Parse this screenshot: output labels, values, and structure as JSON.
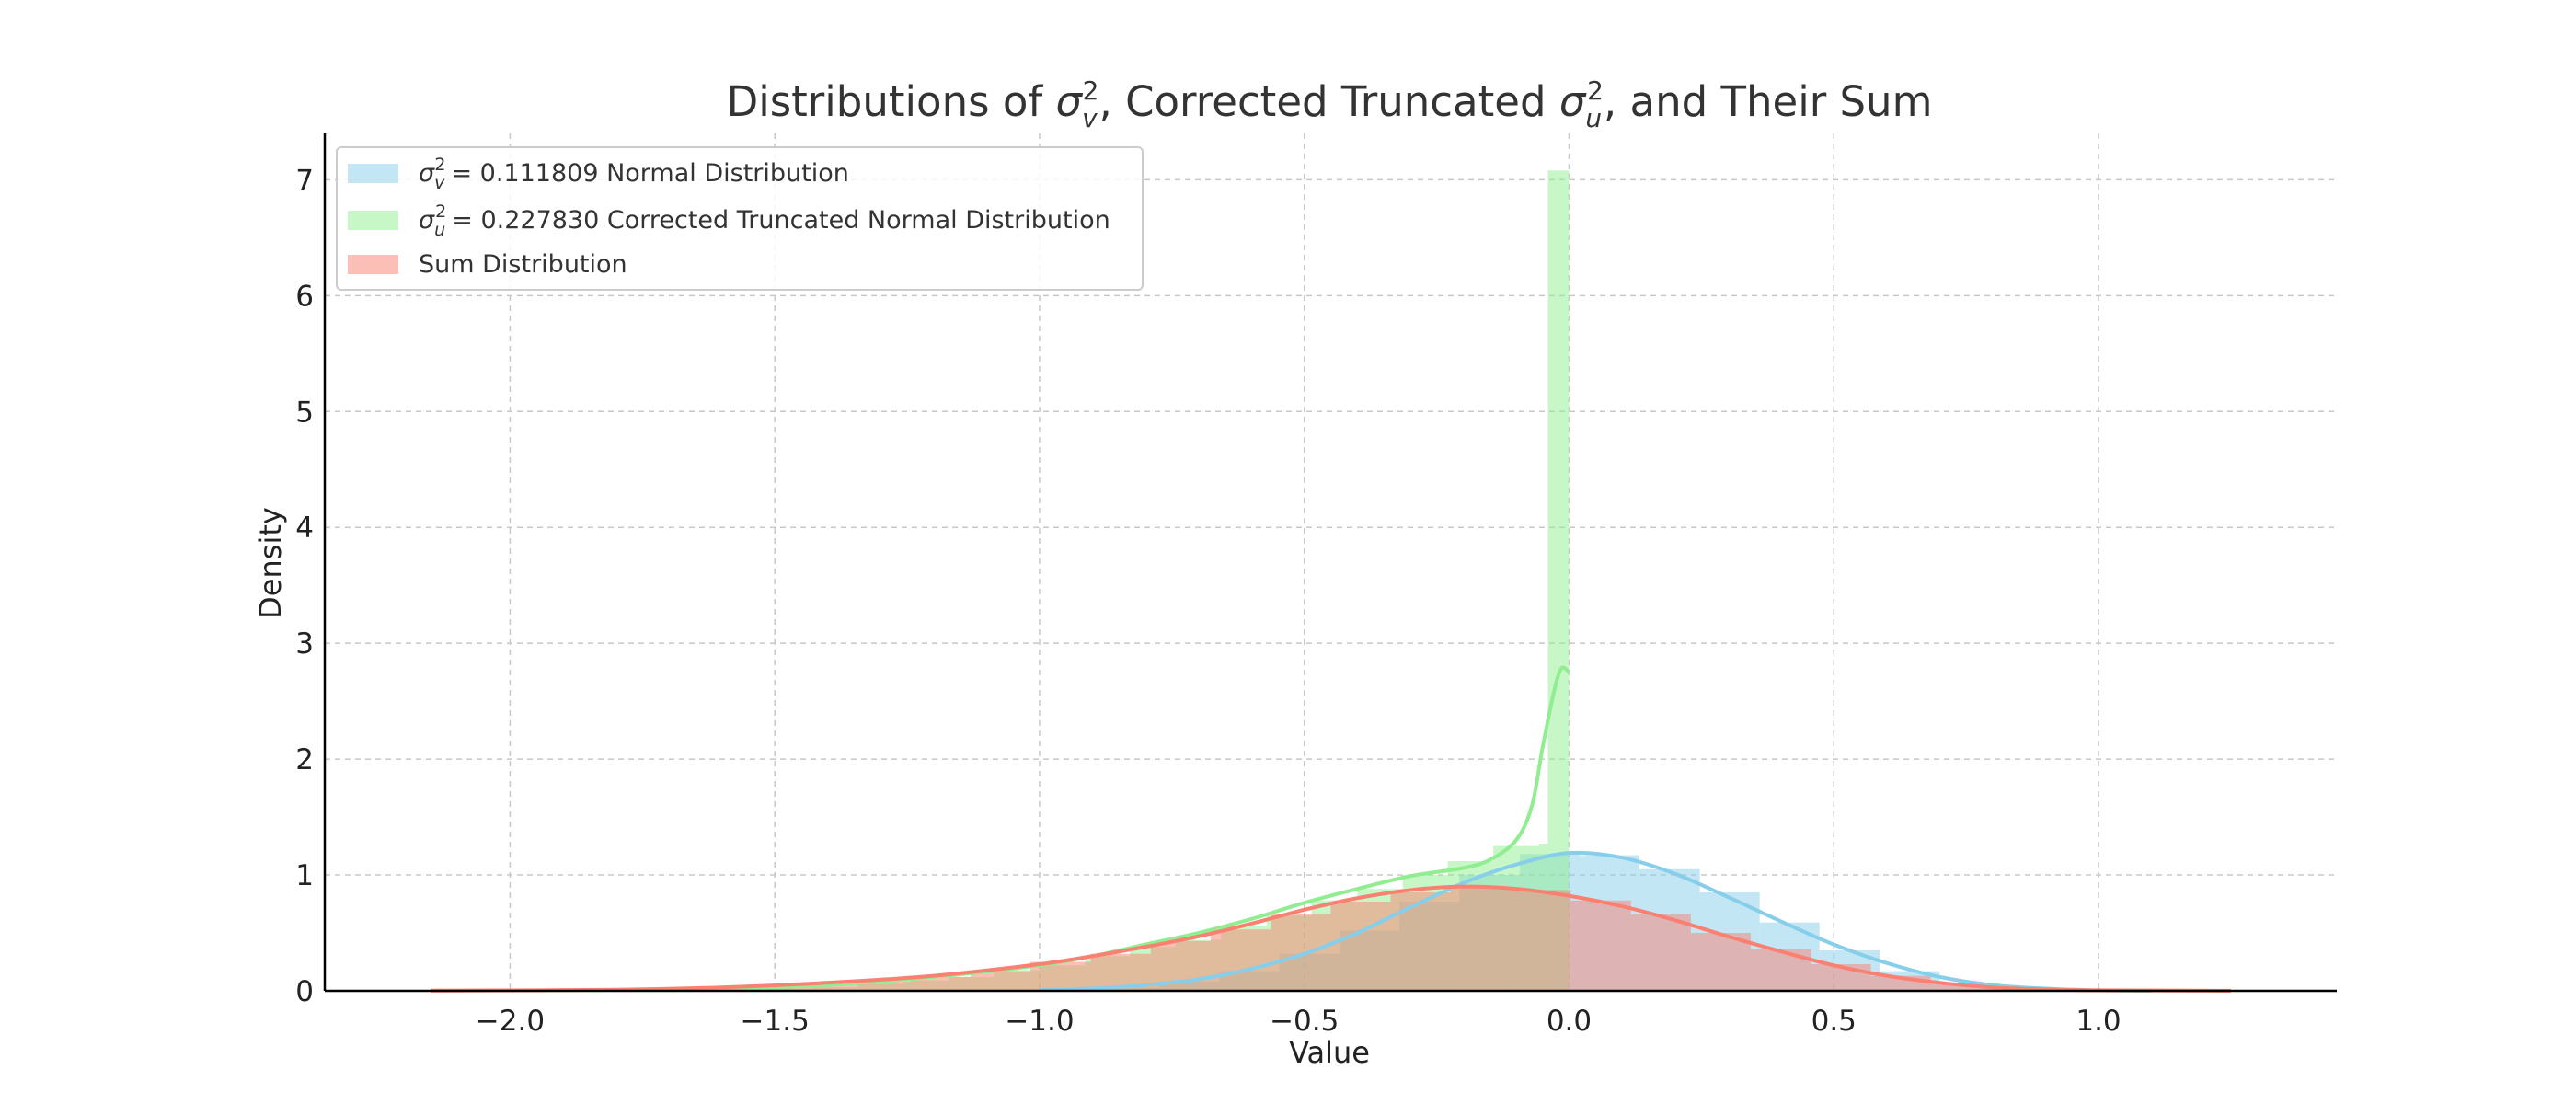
{
  "chart_data": {
    "type": "histogram",
    "title": "Distributions of σv², Corrected Truncated σu², and Their Sum",
    "xlabel": "Value",
    "ylabel": "Density",
    "xlim": [
      -2.35,
      1.45
    ],
    "ylim": [
      0,
      7.4
    ],
    "xticks": [
      "−2.0",
      "−1.5",
      "−1.0",
      "−0.5",
      "0.0",
      "0.5",
      "1.0"
    ],
    "xtick_values": [
      -2.0,
      -1.5,
      -1.0,
      -0.5,
      0.0,
      0.5,
      1.0
    ],
    "yticks": [
      "0",
      "1",
      "2",
      "3",
      "4",
      "5",
      "6",
      "7"
    ],
    "ytick_values": [
      0,
      1,
      2,
      3,
      4,
      5,
      6,
      7
    ],
    "grid": true,
    "legend_position": "top-left",
    "series": [
      {
        "key": "sv",
        "name": "= 0.111809 Normal Distribution",
        "symbol": "σ",
        "superscript": "2",
        "subscript": "v",
        "fill_color": "#87CEEB",
        "line_color": "#87CEEB",
        "bins": [
          [
            -1.0,
            -0.887,
            0.01
          ],
          [
            -0.887,
            -0.773,
            0.03
          ],
          [
            -0.773,
            -0.66,
            0.08
          ],
          [
            -0.66,
            -0.547,
            0.17
          ],
          [
            -0.547,
            -0.433,
            0.32
          ],
          [
            -0.433,
            -0.32,
            0.52
          ],
          [
            -0.32,
            -0.207,
            0.77
          ],
          [
            -0.207,
            -0.093,
            1.0
          ],
          [
            -0.093,
            0.02,
            1.18
          ],
          [
            0.02,
            0.133,
            1.17
          ],
          [
            0.133,
            0.247,
            1.05
          ],
          [
            0.247,
            0.36,
            0.85
          ],
          [
            0.36,
            0.473,
            0.59
          ],
          [
            0.473,
            0.587,
            0.35
          ],
          [
            0.587,
            0.7,
            0.17
          ],
          [
            0.7,
            0.813,
            0.07
          ],
          [
            0.813,
            0.927,
            0.02
          ]
        ],
        "kde": [
          [
            -1.0,
            0.01
          ],
          [
            -0.9,
            0.02
          ],
          [
            -0.8,
            0.05
          ],
          [
            -0.7,
            0.1
          ],
          [
            -0.6,
            0.19
          ],
          [
            -0.5,
            0.32
          ],
          [
            -0.4,
            0.5
          ],
          [
            -0.3,
            0.72
          ],
          [
            -0.2,
            0.93
          ],
          [
            -0.1,
            1.09
          ],
          [
            0.0,
            1.19
          ],
          [
            0.1,
            1.15
          ],
          [
            0.2,
            1.01
          ],
          [
            0.3,
            0.81
          ],
          [
            0.4,
            0.6
          ],
          [
            0.5,
            0.4
          ],
          [
            0.6,
            0.24
          ],
          [
            0.7,
            0.12
          ],
          [
            0.8,
            0.05
          ],
          [
            0.9,
            0.02
          ],
          [
            1.0,
            0.005
          ],
          [
            1.1,
            0.001
          ]
        ]
      },
      {
        "key": "su",
        "name": "= 0.227830 Corrected Truncated Normal Distribution",
        "symbol": "σ",
        "superscript": "2",
        "subscript": "u",
        "fill_color": "#90EE90",
        "line_color": "#90EE90",
        "bins": [
          [
            -1.6,
            -1.514,
            0.01
          ],
          [
            -1.514,
            -1.429,
            0.02
          ],
          [
            -1.429,
            -1.343,
            0.03
          ],
          [
            -1.343,
            -1.257,
            0.06
          ],
          [
            -1.257,
            -1.171,
            0.09
          ],
          [
            -1.171,
            -1.086,
            0.12
          ],
          [
            -1.086,
            -1.0,
            0.18
          ],
          [
            -1.0,
            -0.914,
            0.22
          ],
          [
            -0.914,
            -0.829,
            0.3
          ],
          [
            -0.829,
            -0.743,
            0.38
          ],
          [
            -0.743,
            -0.657,
            0.44
          ],
          [
            -0.657,
            -0.571,
            0.56
          ],
          [
            -0.571,
            -0.486,
            0.65
          ],
          [
            -0.486,
            -0.4,
            0.78
          ],
          [
            -0.4,
            -0.314,
            0.88
          ],
          [
            -0.314,
            -0.229,
            1.0
          ],
          [
            -0.229,
            -0.143,
            1.12
          ],
          [
            -0.143,
            -0.057,
            1.25
          ],
          [
            -0.057,
            -0.04,
            1.27
          ],
          [
            -0.04,
            0.0,
            7.08
          ]
        ],
        "kde": [
          [
            -1.6,
            0.02
          ],
          [
            -1.4,
            0.05
          ],
          [
            -1.2,
            0.12
          ],
          [
            -1.0,
            0.22
          ],
          [
            -0.9,
            0.3
          ],
          [
            -0.8,
            0.4
          ],
          [
            -0.7,
            0.5
          ],
          [
            -0.6,
            0.62
          ],
          [
            -0.5,
            0.76
          ],
          [
            -0.4,
            0.88
          ],
          [
            -0.3,
            0.99
          ],
          [
            -0.2,
            1.06
          ],
          [
            -0.15,
            1.13
          ],
          [
            -0.1,
            1.3
          ],
          [
            -0.07,
            1.6
          ],
          [
            -0.05,
            2.1
          ],
          [
            -0.03,
            2.55
          ],
          [
            -0.015,
            2.78
          ],
          [
            0.0,
            2.75
          ]
        ]
      },
      {
        "key": "sum",
        "name": "Sum Distribution",
        "fill_color": "#FA8072",
        "line_color": "#FA8072",
        "bins": [
          [
            -2.15,
            -2.037,
            0.002
          ],
          [
            -2.037,
            -1.923,
            0.004
          ],
          [
            -1.923,
            -1.81,
            0.006
          ],
          [
            -1.81,
            -1.697,
            0.01
          ],
          [
            -1.697,
            -1.583,
            0.015
          ],
          [
            -1.583,
            -1.47,
            0.03
          ],
          [
            -1.47,
            -1.357,
            0.05
          ],
          [
            -1.357,
            -1.243,
            0.08
          ],
          [
            -1.243,
            -1.13,
            0.12
          ],
          [
            -1.13,
            -1.017,
            0.17
          ],
          [
            -1.017,
            -0.903,
            0.25
          ],
          [
            -0.903,
            -0.79,
            0.32
          ],
          [
            -0.79,
            -0.677,
            0.43
          ],
          [
            -0.677,
            -0.563,
            0.53
          ],
          [
            -0.563,
            -0.45,
            0.66
          ],
          [
            -0.45,
            -0.337,
            0.77
          ],
          [
            -0.337,
            -0.223,
            0.85
          ],
          [
            -0.223,
            -0.11,
            0.9
          ],
          [
            -0.11,
            0.003,
            0.87
          ],
          [
            0.003,
            0.117,
            0.78
          ],
          [
            0.117,
            0.23,
            0.66
          ],
          [
            0.23,
            0.343,
            0.5
          ],
          [
            0.343,
            0.457,
            0.36
          ],
          [
            0.457,
            0.57,
            0.23
          ],
          [
            0.57,
            0.683,
            0.13
          ],
          [
            0.683,
            0.797,
            0.06
          ],
          [
            0.797,
            0.91,
            0.03
          ],
          [
            0.91,
            1.023,
            0.012
          ],
          [
            1.023,
            1.137,
            0.005
          ],
          [
            1.137,
            1.25,
            0.002
          ]
        ],
        "kde": [
          [
            -2.15,
            0.002
          ],
          [
            -1.8,
            0.01
          ],
          [
            -1.6,
            0.03
          ],
          [
            -1.4,
            0.07
          ],
          [
            -1.2,
            0.13
          ],
          [
            -1.0,
            0.23
          ],
          [
            -0.9,
            0.3
          ],
          [
            -0.8,
            0.38
          ],
          [
            -0.7,
            0.47
          ],
          [
            -0.6,
            0.58
          ],
          [
            -0.5,
            0.7
          ],
          [
            -0.4,
            0.8
          ],
          [
            -0.3,
            0.87
          ],
          [
            -0.2,
            0.9
          ],
          [
            -0.1,
            0.88
          ],
          [
            0.0,
            0.82
          ],
          [
            0.1,
            0.73
          ],
          [
            0.2,
            0.61
          ],
          [
            0.3,
            0.47
          ],
          [
            0.4,
            0.34
          ],
          [
            0.5,
            0.22
          ],
          [
            0.6,
            0.13
          ],
          [
            0.7,
            0.07
          ],
          [
            0.8,
            0.03
          ],
          [
            0.9,
            0.012
          ],
          [
            1.0,
            0.005
          ],
          [
            1.25,
            0.001
          ]
        ]
      }
    ]
  }
}
